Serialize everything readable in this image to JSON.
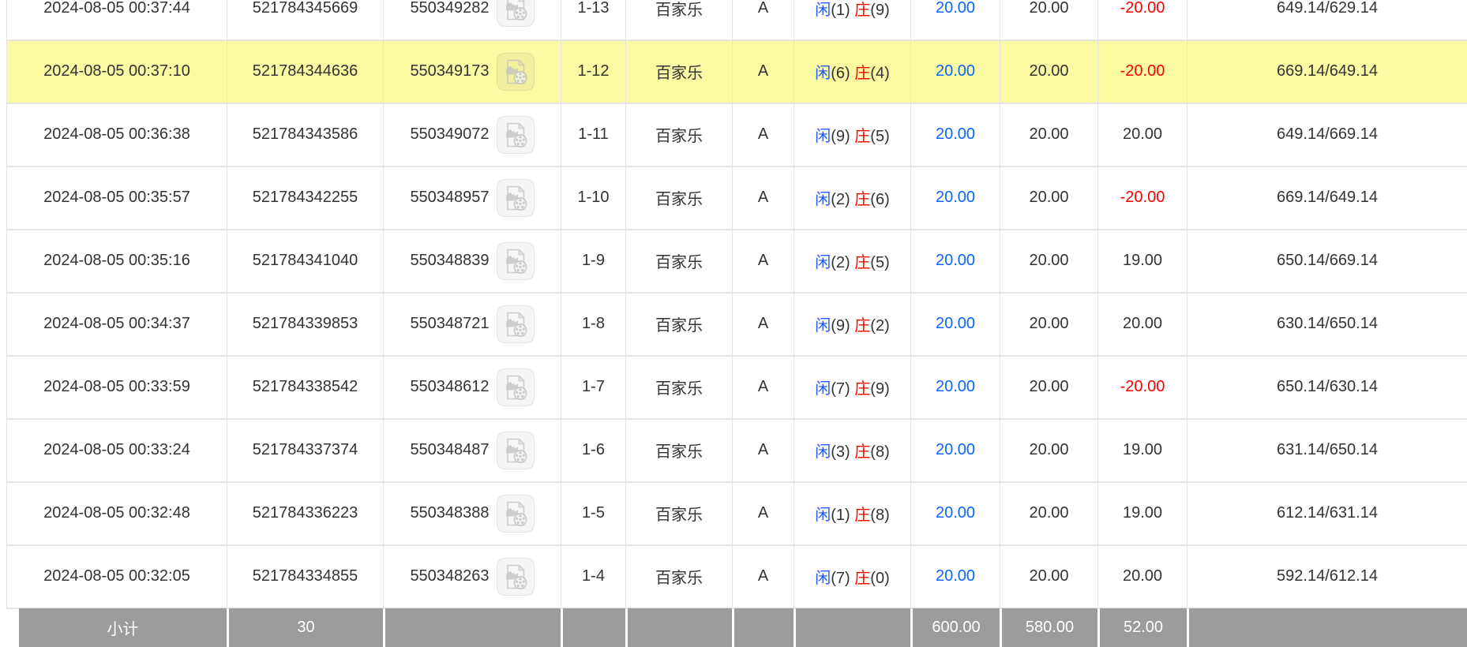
{
  "labels": {
    "player": "闲",
    "banker": "庄"
  },
  "table": {
    "rows": [
      {
        "time": "2024-08-05 00:37:44",
        "serial": "521784345669",
        "game_no": "550349282",
        "round": "1-13",
        "game_type": "百家乐",
        "table_code": "A",
        "player_points": "(1)",
        "banker_points": "(9)",
        "bet": "20.00",
        "valid_bet": "20.00",
        "win_loss": "-20.00",
        "balance": "649.14/629.14",
        "highlighted": false
      },
      {
        "time": "2024-08-05 00:37:10",
        "serial": "521784344636",
        "game_no": "550349173",
        "round": "1-12",
        "game_type": "百家乐",
        "table_code": "A",
        "player_points": "(6)",
        "banker_points": "(4)",
        "bet": "20.00",
        "valid_bet": "20.00",
        "win_loss": "-20.00",
        "balance": "669.14/649.14",
        "highlighted": true
      },
      {
        "time": "2024-08-05 00:36:38",
        "serial": "521784343586",
        "game_no": "550349072",
        "round": "1-11",
        "game_type": "百家乐",
        "table_code": "A",
        "player_points": "(9)",
        "banker_points": "(5)",
        "bet": "20.00",
        "valid_bet": "20.00",
        "win_loss": "20.00",
        "balance": "649.14/669.14",
        "highlighted": false
      },
      {
        "time": "2024-08-05 00:35:57",
        "serial": "521784342255",
        "game_no": "550348957",
        "round": "1-10",
        "game_type": "百家乐",
        "table_code": "A",
        "player_points": "(2)",
        "banker_points": "(6)",
        "bet": "20.00",
        "valid_bet": "20.00",
        "win_loss": "-20.00",
        "balance": "669.14/649.14",
        "highlighted": false
      },
      {
        "time": "2024-08-05 00:35:16",
        "serial": "521784341040",
        "game_no": "550348839",
        "round": "1-9",
        "game_type": "百家乐",
        "table_code": "A",
        "player_points": "(2)",
        "banker_points": "(5)",
        "bet": "20.00",
        "valid_bet": "20.00",
        "win_loss": "19.00",
        "balance": "650.14/669.14",
        "highlighted": false
      },
      {
        "time": "2024-08-05 00:34:37",
        "serial": "521784339853",
        "game_no": "550348721",
        "round": "1-8",
        "game_type": "百家乐",
        "table_code": "A",
        "player_points": "(9)",
        "banker_points": "(2)",
        "bet": "20.00",
        "valid_bet": "20.00",
        "win_loss": "20.00",
        "balance": "630.14/650.14",
        "highlighted": false
      },
      {
        "time": "2024-08-05 00:33:59",
        "serial": "521784338542",
        "game_no": "550348612",
        "round": "1-7",
        "game_type": "百家乐",
        "table_code": "A",
        "player_points": "(7)",
        "banker_points": "(9)",
        "bet": "20.00",
        "valid_bet": "20.00",
        "win_loss": "-20.00",
        "balance": "650.14/630.14",
        "highlighted": false
      },
      {
        "time": "2024-08-05 00:33:24",
        "serial": "521784337374",
        "game_no": "550348487",
        "round": "1-6",
        "game_type": "百家乐",
        "table_code": "A",
        "player_points": "(3)",
        "banker_points": "(8)",
        "bet": "20.00",
        "valid_bet": "20.00",
        "win_loss": "19.00",
        "balance": "631.14/650.14",
        "highlighted": false
      },
      {
        "time": "2024-08-05 00:32:48",
        "serial": "521784336223",
        "game_no": "550348388",
        "round": "1-5",
        "game_type": "百家乐",
        "table_code": "A",
        "player_points": "(1)",
        "banker_points": "(8)",
        "bet": "20.00",
        "valid_bet": "20.00",
        "win_loss": "19.00",
        "balance": "612.14/631.14",
        "highlighted": false
      },
      {
        "time": "2024-08-05 00:32:05",
        "serial": "521784334855",
        "game_no": "550348263",
        "round": "1-4",
        "game_type": "百家乐",
        "table_code": "A",
        "player_points": "(7)",
        "banker_points": "(0)",
        "bet": "20.00",
        "valid_bet": "20.00",
        "win_loss": "20.00",
        "balance": "592.14/612.14",
        "highlighted": false
      }
    ],
    "footer": {
      "label": "小计",
      "count": "30",
      "bet_total": "600.00",
      "valid_bet_total": "580.00",
      "win_loss_total": "52.00"
    }
  },
  "icons": {
    "video_icon": "video-file-icon"
  },
  "colors": {
    "highlight_row": "#fafaa2",
    "link_blue": "#0a66ff",
    "player_blue": "#1e5aff",
    "banker_red": "#ff0000",
    "negative_red": "#ff0000",
    "footer_bg": "#9c9c9c",
    "footer_text": "#ffffff",
    "body_text": "#333333",
    "cell_border": "#e4e4e4"
  }
}
